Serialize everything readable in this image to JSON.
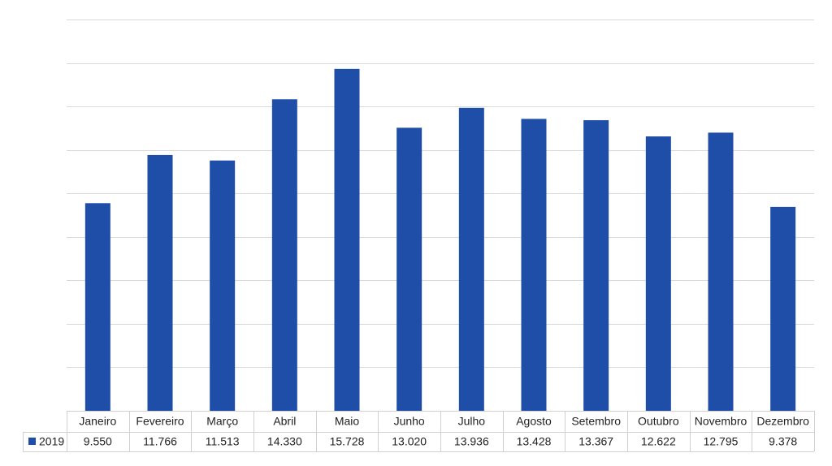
{
  "chart_data": {
    "type": "bar",
    "categories": [
      "Janeiro",
      "Fevereiro",
      "Março",
      "Abril",
      "Maio",
      "Junho",
      "Julho",
      "Agosto",
      "Setembro",
      "Outubro",
      "Novembro",
      "Dezembro"
    ],
    "series": [
      {
        "name": "2019",
        "color": "#1f4ea8",
        "values": [
          9550,
          11766,
          11513,
          14330,
          15728,
          13020,
          13936,
          13428,
          13367,
          12622,
          12795,
          9378
        ],
        "value_labels": [
          "9.550",
          "11.766",
          "11.513",
          "14.330",
          "15.728",
          "13.020",
          "13.936",
          "13.428",
          "13.367",
          "12.622",
          "12.795",
          "9.378"
        ]
      }
    ],
    "ylim": [
      0,
      18000
    ],
    "yticks": [
      0,
      2000,
      4000,
      6000,
      8000,
      10000,
      12000,
      14000,
      16000,
      18000
    ],
    "grid": true
  }
}
